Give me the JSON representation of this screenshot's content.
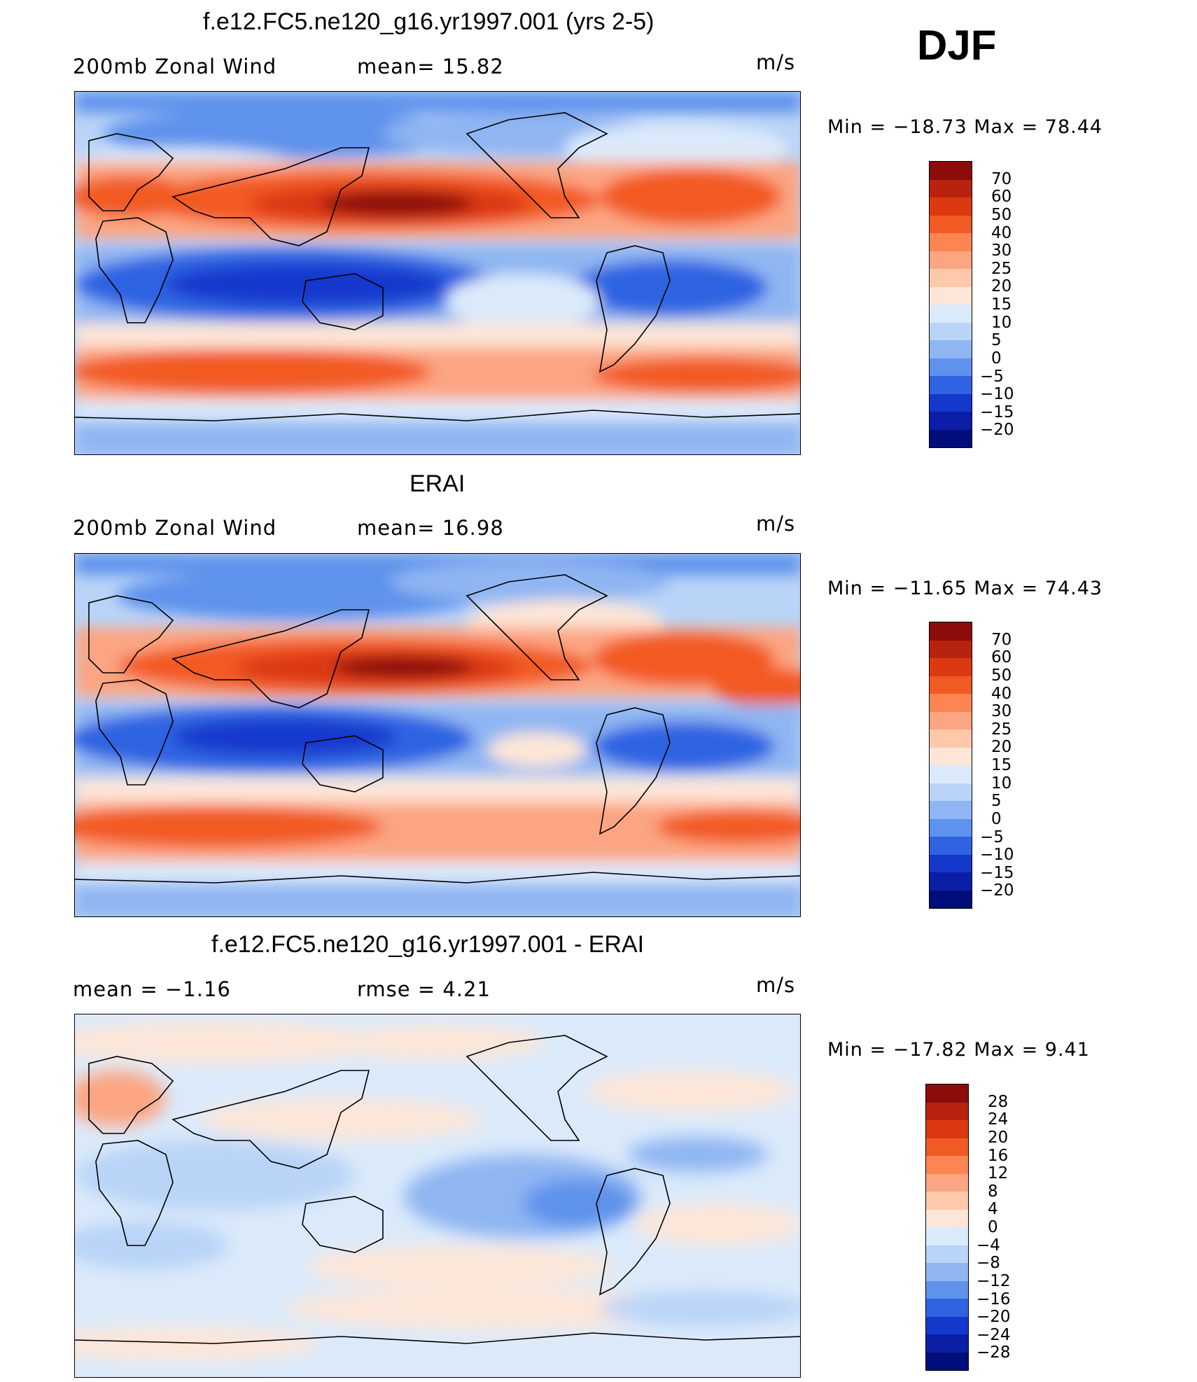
{
  "season": "DJF",
  "units": "m/s",
  "panels": [
    {
      "title": "f.e12.FC5.ne120_g16.yr1997.001 (yrs 2-5)",
      "left_label": "200mb  Zonal  Wind",
      "stat_label": "mean=   15.82",
      "minmax": "Min  =  −18.73  Max  =    78.44",
      "kind": "abs"
    },
    {
      "title": "ERAI",
      "left_label": "200mb  Zonal  Wind",
      "stat_label": "mean=   16.98",
      "minmax": "Min  =  −11.65  Max  =    74.43",
      "kind": "abs"
    },
    {
      "title": "f.e12.FC5.ne120_g16.yr1997.001 - ERAI",
      "left_label": "mean  =    −1.16",
      "stat_label": "rmse  =     4.21",
      "minmax": "Min  =  −17.82  Max  =     9.41",
      "kind": "diff"
    }
  ],
  "colorbar_abs": {
    "labels": [
      "70",
      "60",
      "50",
      "40",
      "30",
      "25",
      "20",
      "15",
      "10",
      "5",
      "0",
      "−5",
      "−10",
      "−15",
      "−20"
    ],
    "colors": [
      "#8c0b0b",
      "#b8230f",
      "#dc3912",
      "#f25a24",
      "#fc8553",
      "#fca582",
      "#fdc9aa",
      "#fde6d8",
      "#dbeafb",
      "#b9d4f7",
      "#8fb6f2",
      "#5f92ec",
      "#2f63e2",
      "#1538cc",
      "#0a1fa6",
      "#000d7a"
    ]
  },
  "colorbar_diff": {
    "labels": [
      "28",
      "24",
      "20",
      "16",
      "12",
      "8",
      "4",
      "0",
      "−4",
      "−8",
      "−12",
      "−16",
      "−20",
      "−24",
      "−28"
    ],
    "colors": [
      "#8c0b0b",
      "#b8230f",
      "#dc3912",
      "#f25a24",
      "#fc8553",
      "#fca582",
      "#fdc9aa",
      "#fde6d8",
      "#dbeafb",
      "#b9d4f7",
      "#8fb6f2",
      "#5f92ec",
      "#2f63e2",
      "#1538cc",
      "#0a1fa6",
      "#000d7a"
    ]
  }
}
